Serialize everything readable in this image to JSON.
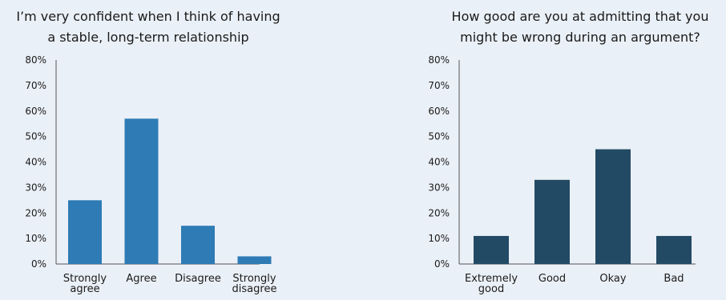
{
  "chart_data": [
    {
      "type": "bar",
      "title_lines": [
        "I’m very confident when I think of having",
        "a stable, long-term relationship"
      ],
      "categories": [
        [
          "Strongly",
          "agree"
        ],
        [
          "Agree"
        ],
        [
          "Disagree"
        ],
        [
          "Strongly",
          "disagree"
        ]
      ],
      "values": [
        25,
        57,
        15,
        3
      ],
      "ylim": [
        0,
        80
      ],
      "yticks": [
        "0%",
        "10%",
        "20%",
        "30%",
        "40%",
        "50%",
        "60%",
        "70%",
        "80%"
      ],
      "bar_color": "#2e7bb5",
      "grid": false
    },
    {
      "type": "bar",
      "title_lines": [
        "How good are you at admitting that you",
        "might be wrong during an argument?"
      ],
      "categories": [
        [
          "Extremely",
          "good"
        ],
        [
          "Good"
        ],
        [
          "Okay"
        ],
        [
          "Bad"
        ]
      ],
      "values": [
        11,
        33,
        45,
        11
      ],
      "ylim": [
        0,
        80
      ],
      "yticks": [
        "0%",
        "10%",
        "20%",
        "30%",
        "40%",
        "50%",
        "60%",
        "70%",
        "80%"
      ],
      "bar_color": "#234a65",
      "grid": false
    }
  ],
  "colors": {
    "background": "#eaf0f7",
    "axis": "#555555"
  }
}
